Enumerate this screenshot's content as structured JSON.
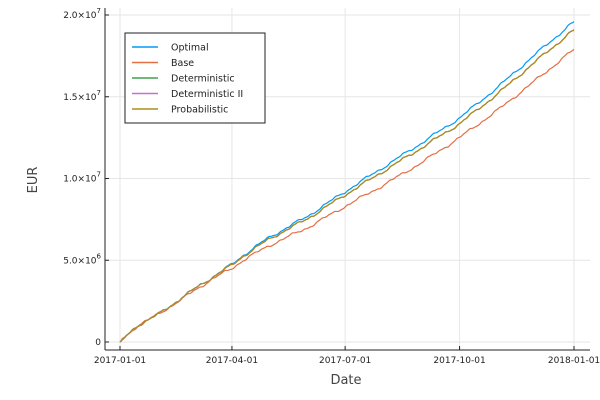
{
  "chart_data": {
    "type": "line",
    "title": "",
    "xlabel": "Date",
    "ylabel": "EUR",
    "xlim": [
      "2017-01-01",
      "2018-01-01"
    ],
    "ylim": [
      0,
      20000000
    ],
    "x_ticks": [
      "2017-01-01",
      "2017-04-01",
      "2017-07-01",
      "2017-10-01",
      "2018-01-01"
    ],
    "y_ticks": [
      {
        "value": 0,
        "mantissa": "0",
        "exponent": ""
      },
      {
        "value": 5000000,
        "mantissa": "5.0×10",
        "exponent": "6"
      },
      {
        "value": 10000000,
        "mantissa": "1.0×10",
        "exponent": "7"
      },
      {
        "value": 15000000,
        "mantissa": "1.5×10",
        "exponent": "7"
      },
      {
        "value": 20000000,
        "mantissa": "2.0×10",
        "exponent": "7"
      }
    ],
    "grid": true,
    "legend_position": "top-left",
    "x": [
      "2017-01-01",
      "2017-01-15",
      "2017-02-01",
      "2017-03-01",
      "2017-03-15",
      "2017-04-01",
      "2017-04-10",
      "2017-05-01",
      "2017-06-01",
      "2017-07-01",
      "2017-08-01",
      "2017-09-01",
      "2017-10-01",
      "2017-11-01",
      "2017-12-01",
      "2018-01-01"
    ],
    "series": [
      {
        "name": "Optimal",
        "color": "#009af9",
        "values": [
          0,
          1000000,
          1700000,
          3200000,
          3900000,
          4750000,
          5300000,
          6400000,
          7700000,
          9200000,
          10700000,
          12200000,
          13700000,
          15600000,
          17600000,
          19600000
        ]
      },
      {
        "name": "Base",
        "color": "#e26f46",
        "values": [
          0,
          1000000,
          1700000,
          3100000,
          3800000,
          4500000,
          5000000,
          5900000,
          7000000,
          8300000,
          9600000,
          11000000,
          12500000,
          14200000,
          16000000,
          17900000
        ]
      },
      {
        "name": "Deterministic",
        "color": "#3da44d",
        "values": [
          0,
          1000000,
          1700000,
          3200000,
          3900000,
          4700000,
          5250000,
          6300000,
          7550000,
          9000000,
          10450000,
          11900000,
          13350000,
          15200000,
          17150000,
          19100000
        ]
      },
      {
        "name": "Deterministic II",
        "color": "#c271d2",
        "values": [
          0,
          1000000,
          1700000,
          3200000,
          3900000,
          4700000,
          5250000,
          6300000,
          7550000,
          9000000,
          10450000,
          11900000,
          13350000,
          15200000,
          17150000,
          19100000
        ]
      },
      {
        "name": "Probabilistic",
        "color": "#ac8d18",
        "values": [
          0,
          1000000,
          1700000,
          3200000,
          3900000,
          4700000,
          5250000,
          6300000,
          7550000,
          9000000,
          10450000,
          11900000,
          13350000,
          15200000,
          17150000,
          19100000
        ]
      }
    ]
  }
}
